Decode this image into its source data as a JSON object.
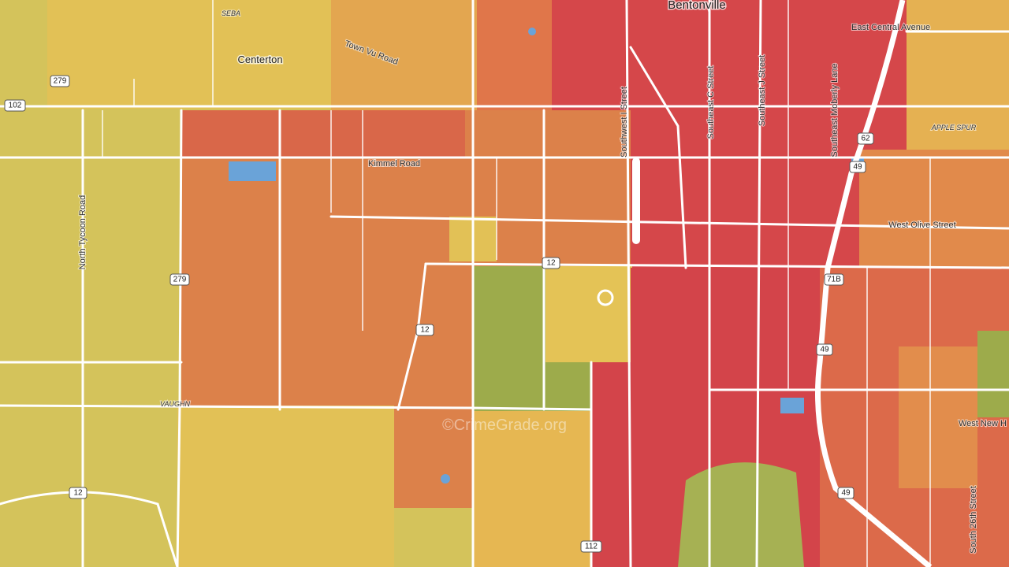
{
  "map": {
    "places": [
      "Bentonville",
      "Centerton",
      "SEBA",
      "VAUGHN",
      "APPLE SPUR"
    ],
    "roads": [
      "Town Vu Road",
      "East Central Avenue",
      "Kimmel Road",
      "Southwest I Street",
      "Southeast C Street",
      "Southeast J Street",
      "Southeast Moberly Lane",
      "West Olive Street",
      "North Tycoon Road",
      "West New H",
      "South 26th Street"
    ],
    "shields": [
      "279",
      "102",
      "12",
      "62",
      "49",
      "71B",
      "112"
    ],
    "watermark": "©CrimeGrade.org"
  }
}
